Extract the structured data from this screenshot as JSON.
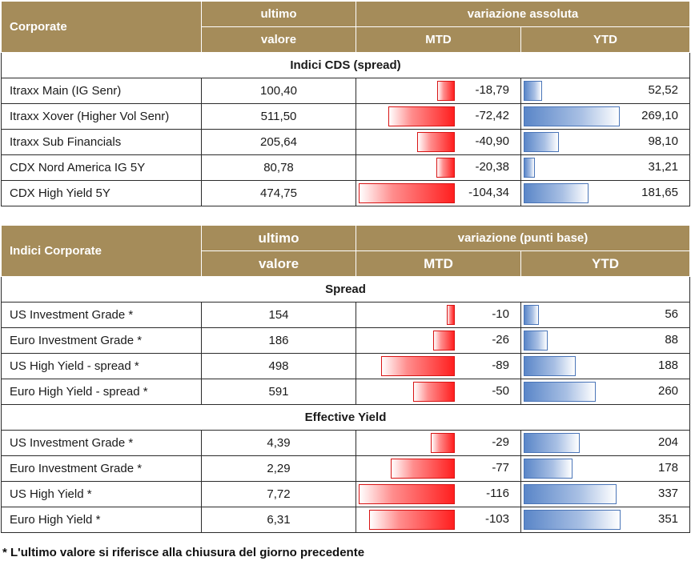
{
  "table1": {
    "header": {
      "corner": "Corporate",
      "last_line1": "ultimo",
      "last_line2": "valore",
      "group": "variazione assoluta",
      "mtd": "MTD",
      "ytd": "YTD"
    },
    "section": "Indici CDS (spread)",
    "rows": [
      {
        "name": "Itraxx Main (IG Senr)",
        "value": "100,40",
        "mtd": "-18,79",
        "ytd": "52,52",
        "mtd_n": -18.79,
        "ytd_n": 52.52
      },
      {
        "name": "Itraxx Xover (Higher Vol Senr)",
        "value": "511,50",
        "mtd": "-72,42",
        "ytd": "269,10",
        "mtd_n": -72.42,
        "ytd_n": 269.1
      },
      {
        "name": "Itraxx Sub Financials",
        "value": "205,64",
        "mtd": "-40,90",
        "ytd": "98,10",
        "mtd_n": -40.9,
        "ytd_n": 98.1
      },
      {
        "name": "CDX Nord America IG 5Y",
        "value": "80,78",
        "mtd": "-20,38",
        "ytd": "31,21",
        "mtd_n": -20.38,
        "ytd_n": 31.21
      },
      {
        "name": "CDX High Yield 5Y",
        "value": "474,75",
        "mtd": "-104,34",
        "ytd": "181,65",
        "mtd_n": -104.34,
        "ytd_n": 181.65
      }
    ]
  },
  "table2": {
    "header": {
      "corner": "Indici Corporate",
      "last_line1": "ultimo",
      "last_line2": "valore",
      "group": "variazione (punti base)",
      "mtd": "MTD",
      "ytd": "YTD"
    },
    "sections": [
      {
        "title": "Spread",
        "rows": [
          {
            "name": "US Investment Grade *",
            "value": "154",
            "mtd": "-10",
            "ytd": "56",
            "mtd_n": -10,
            "ytd_n": 56
          },
          {
            "name": "Euro Investment Grade *",
            "value": "186",
            "mtd": "-26",
            "ytd": "88",
            "mtd_n": -26,
            "ytd_n": 88
          },
          {
            "name": "US High Yield  - spread *",
            "value": "498",
            "mtd": "-89",
            "ytd": "188",
            "mtd_n": -89,
            "ytd_n": 188
          },
          {
            "name": "Euro High Yield  - spread *",
            "value": "591",
            "mtd": "-50",
            "ytd": "260",
            "mtd_n": -50,
            "ytd_n": 260
          }
        ]
      },
      {
        "title": "Effective Yield",
        "rows": [
          {
            "name": "US Investment Grade *",
            "value": "4,39",
            "mtd": "-29",
            "ytd": "204",
            "mtd_n": -29,
            "ytd_n": 204
          },
          {
            "name": "Euro Investment Grade *",
            "value": "2,29",
            "mtd": "-77",
            "ytd": "178",
            "mtd_n": -77,
            "ytd_n": 178
          },
          {
            "name": "US High Yield *",
            "value": "7,72",
            "mtd": "-116",
            "ytd": "337",
            "mtd_n": -116,
            "ytd_n": 337
          },
          {
            "name": "Euro High Yield *",
            "value": "6,31",
            "mtd": "-103",
            "ytd": "351",
            "mtd_n": -103,
            "ytd_n": 351
          }
        ]
      }
    ]
  },
  "footnote": "* L'ultimo valore si riferisce alla chiusura del giorno precedente"
}
